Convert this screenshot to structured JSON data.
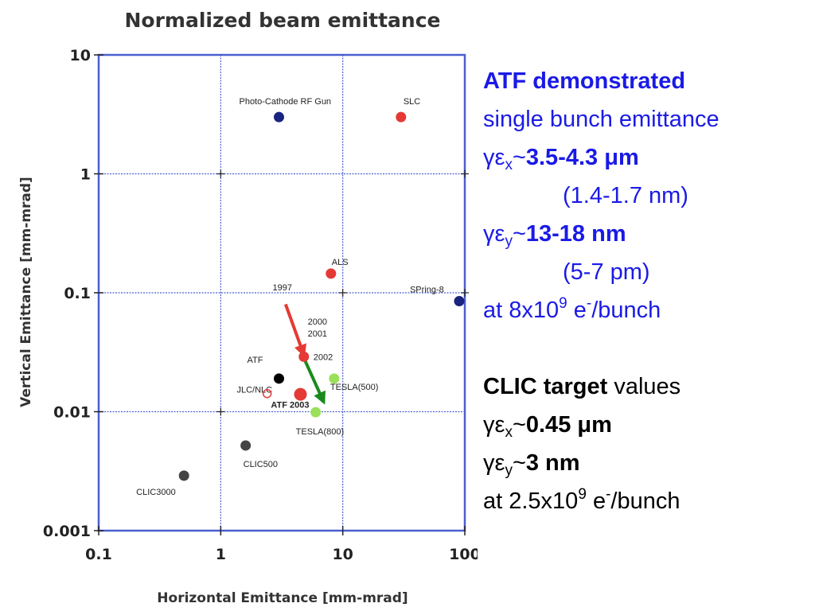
{
  "chart_data": {
    "type": "scatter",
    "title": "Normalized beam emittance",
    "xlabel": "Horizontal Emittance [mm-mrad]",
    "ylabel": "Vertical Emittance [mm-mrad]",
    "x_scale": "log",
    "y_scale": "log",
    "xlim": [
      0.1,
      100
    ],
    "ylim": [
      0.001,
      10
    ],
    "x_ticks": [
      "0.1",
      "1",
      "10",
      "100"
    ],
    "y_ticks": [
      "10",
      "1",
      "0.1",
      "0.01",
      "0.001"
    ],
    "grid": true,
    "points": [
      {
        "label": "Photo-Cathode RF Gun",
        "x": 3.0,
        "y": 3.0,
        "color": "#1a237e"
      },
      {
        "label": "SLC",
        "x": 30,
        "y": 3.0,
        "color": "#e53935"
      },
      {
        "label": "ALS",
        "x": 8.0,
        "y": 0.145,
        "color": "#e53935"
      },
      {
        "label": "SPring-8",
        "x": 90,
        "y": 0.085,
        "color": "#1a237e"
      },
      {
        "label": "ATF",
        "x": 3.0,
        "y": 0.019,
        "color": "#000000"
      },
      {
        "label": "2002",
        "x": 4.8,
        "y": 0.029,
        "color": "#e53935"
      },
      {
        "label": "JLC/NLC",
        "x": 4.5,
        "y": 0.014,
        "color": "#e53935"
      },
      {
        "label": "TESLA(500)",
        "x": 8.5,
        "y": 0.019,
        "color": "#9be05a"
      },
      {
        "label": "TESLA(800)",
        "x": 6.0,
        "y": 0.0099,
        "color": "#9be05a"
      },
      {
        "label": "CLIC500",
        "x": 1.6,
        "y": 0.0052,
        "color": "#444444"
      },
      {
        "label": "CLIC3000",
        "x": 0.5,
        "y": 0.0029,
        "color": "#444444"
      }
    ],
    "annotations": [
      {
        "text": "1997",
        "type": "label"
      },
      {
        "text": "2000",
        "type": "label"
      },
      {
        "text": "2001",
        "type": "label"
      },
      {
        "text": "ATF 2003",
        "type": "label",
        "color": "#e53935"
      }
    ],
    "arrows": [
      {
        "from": [
          3.4,
          0.08
        ],
        "to": [
          4.8,
          0.03
        ],
        "color": "#e53935"
      },
      {
        "from": [
          4.9,
          0.027
        ],
        "to": [
          7.0,
          0.012
        ],
        "color": "#1b8a1b"
      }
    ]
  },
  "side_text": {
    "atf_heading": "ATF demonstrated",
    "atf_subheading": "single bunch emittance",
    "atf_ex": "3.5-4.3 ",
    "atf_ex_nm": "(1.4-1.7 nm)",
    "atf_ey": "13-18 nm",
    "atf_ey_pm": "(5-7 pm)",
    "atf_charge_prefix": "at 8x10",
    "atf_charge_exp": "9",
    "atf_charge_mid": " e",
    "atf_charge_minus": "-",
    "atf_charge_suffix": "/bunch",
    "clic_heading": "CLIC target",
    "clic_values": " values",
    "clic_ex": "0.45 ",
    "clic_ey": "3 nm",
    "clic_charge_prefix": "at 2.5x10",
    "clic_charge_exp": "9",
    "clic_charge_mid": " e",
    "clic_charge_minus": "-",
    "clic_charge_suffix": "/bunch",
    "gamma": "γ",
    "epsilon": "ε",
    "sub_x": "x",
    "sub_y": "y",
    "tilde": "~",
    "mu": "μ",
    "m_unit": "m"
  }
}
